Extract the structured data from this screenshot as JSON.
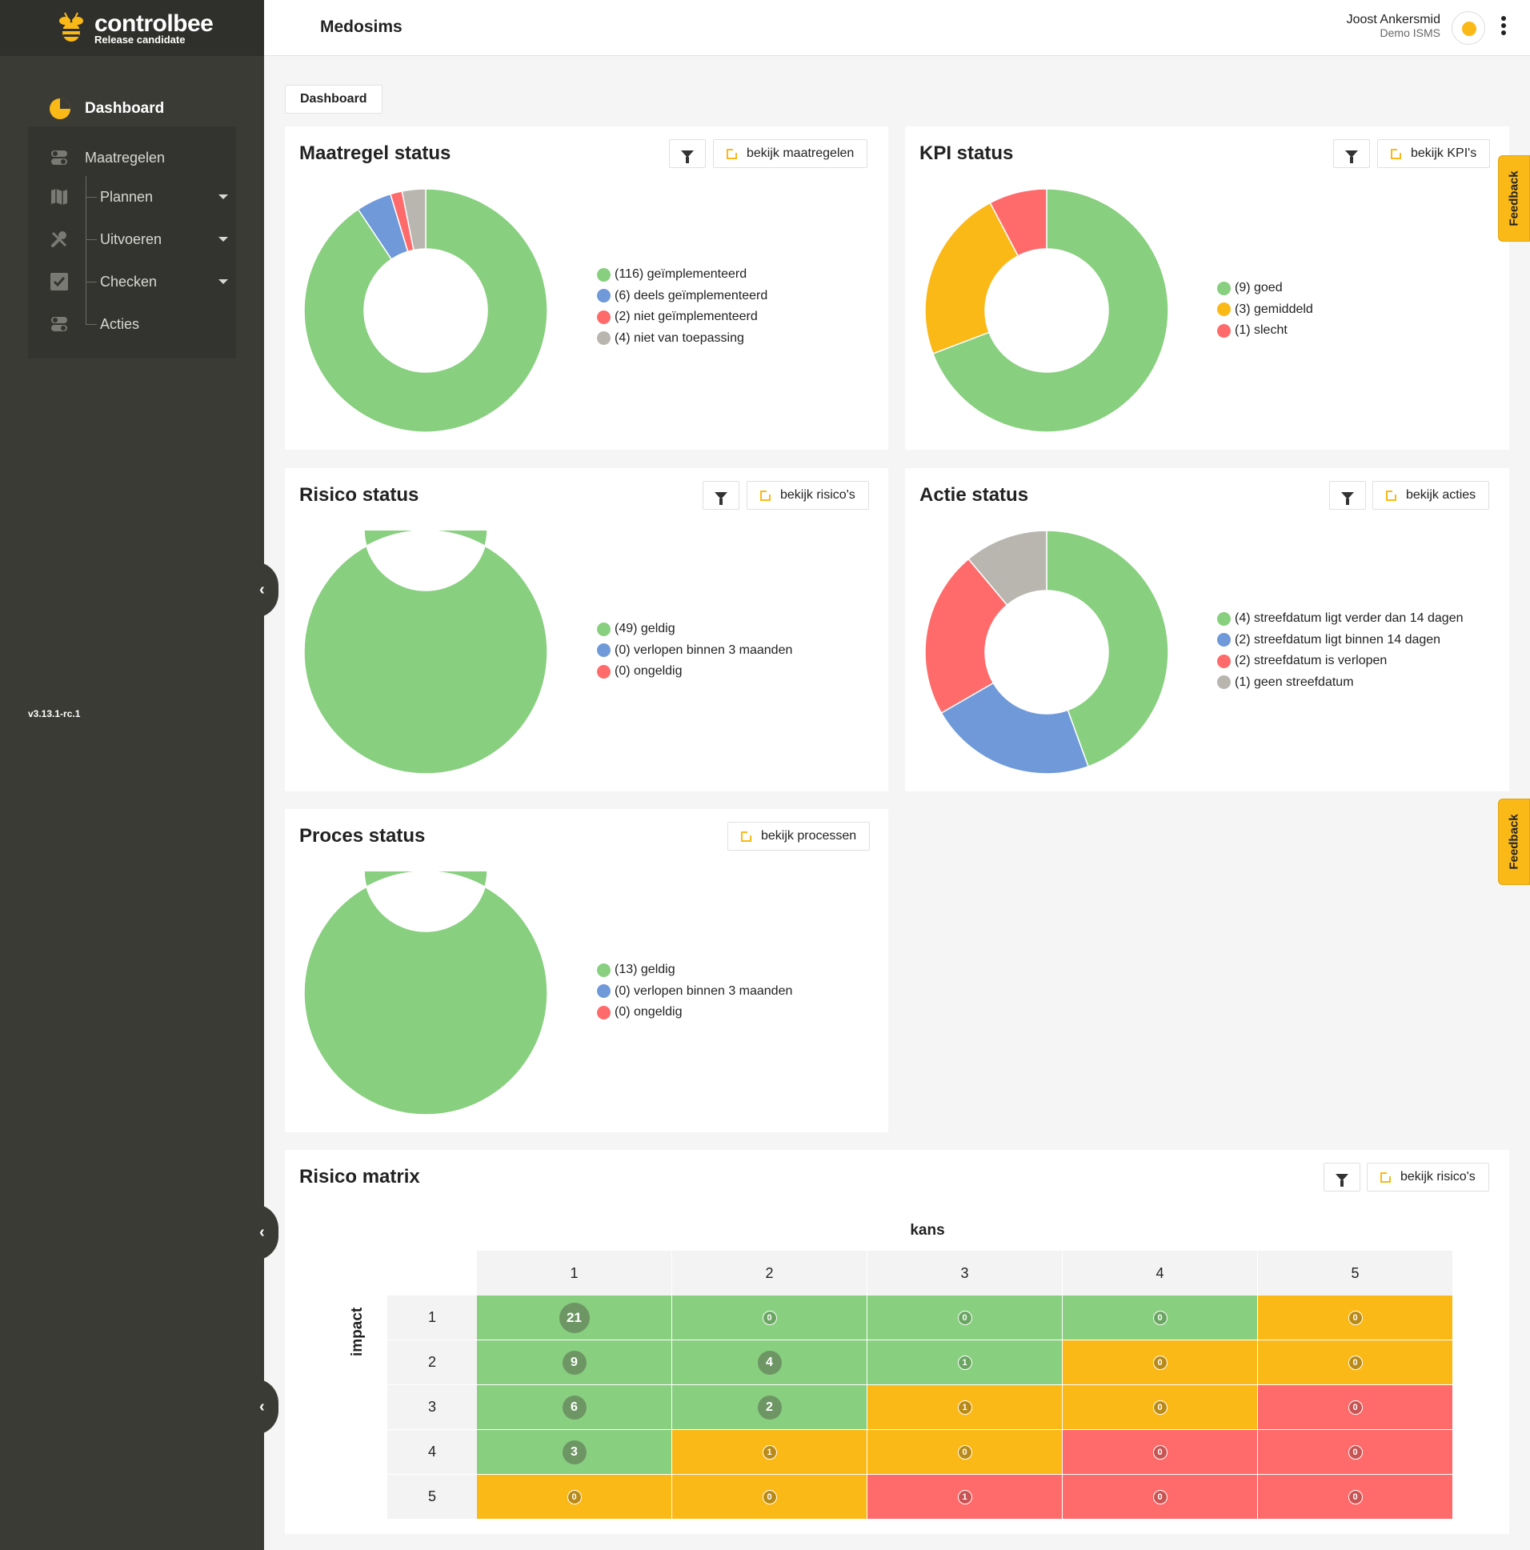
{
  "colors": {
    "green": "#88cf7f",
    "blue": "#6f99d8",
    "red": "#ff6b6b",
    "gray": "#b9b6b0",
    "orange": "#fbb917",
    "sidebar": "#3b3b36",
    "accent": "#fbb917"
  },
  "brand": {
    "name": "controlbee",
    "subtitle": "Release candidate",
    "icon": "bee-logo-icon"
  },
  "sidebar": {
    "dashboard": "Dashboard",
    "items": [
      {
        "label": "Maatregelen",
        "icon": "toggles-icon",
        "caret": false
      },
      {
        "label": "Plannen",
        "icon": "map-icon",
        "caret": true
      },
      {
        "label": "Uitvoeren",
        "icon": "tools-icon",
        "caret": true
      },
      {
        "label": "Checken",
        "icon": "check-icon",
        "caret": true
      },
      {
        "label": "Acties",
        "icon": "toggles-icon",
        "caret": false
      }
    ],
    "version": "v3.13.1-rc.1"
  },
  "header": {
    "org": "Medosims",
    "user_name": "Joost Ankersmid",
    "user_org": "Demo ISMS"
  },
  "breadcrumb": "Dashboard",
  "feedback_label": "Feedback",
  "cards": {
    "maatregel": {
      "title": "Maatregel status",
      "button": "bekijk maatregelen",
      "legend": [
        "(116) geïmplementeerd",
        "(6) deels geïmplementeerd",
        "(2) niet geïmplementeerd",
        "(4) niet van toepassing"
      ]
    },
    "kpi": {
      "title": "KPI status",
      "button": "bekijk KPI's",
      "legend": [
        "(9) goed",
        "(3) gemiddeld",
        "(1) slecht"
      ]
    },
    "risico": {
      "title": "Risico status",
      "button": "bekijk risico's",
      "legend": [
        "(49) geldig",
        "(0) verlopen binnen 3 maanden",
        "(0) ongeldig"
      ]
    },
    "actie": {
      "title": "Actie status",
      "button": "bekijk acties",
      "legend": [
        "(4) streefdatum ligt verder dan 14 dagen",
        "(2) streefdatum ligt binnen 14 dagen",
        "(2) streefdatum is verlopen",
        "(1) geen streefdatum"
      ]
    },
    "proces": {
      "title": "Proces status",
      "button": "bekijk processen",
      "legend": [
        "(13) geldig",
        "(0) verlopen binnen 3 maanden",
        "(0) ongeldig"
      ]
    },
    "matrix": {
      "title": "Risico matrix",
      "button": "bekijk risico's",
      "x_label": "kans",
      "y_label": "impact"
    }
  },
  "chart_data": [
    {
      "type": "pie",
      "id": "maatregel",
      "categories": [
        "geïmplementeerd",
        "deels geïmplementeerd",
        "niet geïmplementeerd",
        "niet van toepassing"
      ],
      "values": [
        116,
        6,
        2,
        4
      ],
      "colors": [
        "#88cf7f",
        "#6f99d8",
        "#ff6b6b",
        "#b9b6b0"
      ]
    },
    {
      "type": "pie",
      "id": "kpi",
      "categories": [
        "goed",
        "gemiddeld",
        "slecht"
      ],
      "values": [
        9,
        3,
        1
      ],
      "colors": [
        "#88cf7f",
        "#fbb917",
        "#ff6b6b"
      ]
    },
    {
      "type": "pie",
      "id": "risico",
      "categories": [
        "geldig",
        "verlopen binnen 3 maanden",
        "ongeldig"
      ],
      "values": [
        49,
        0,
        0
      ],
      "colors": [
        "#88cf7f",
        "#6f99d8",
        "#ff6b6b"
      ]
    },
    {
      "type": "pie",
      "id": "actie",
      "categories": [
        "streefdatum ligt verder dan 14 dagen",
        "streefdatum ligt binnen 14 dagen",
        "streefdatum is verlopen",
        "geen streefdatum"
      ],
      "values": [
        4,
        2,
        2,
        1
      ],
      "colors": [
        "#88cf7f",
        "#6f99d8",
        "#ff6b6b",
        "#b9b6b0"
      ]
    },
    {
      "type": "pie",
      "id": "proces",
      "categories": [
        "geldig",
        "verlopen binnen 3 maanden",
        "ongeldig"
      ],
      "values": [
        13,
        0,
        0
      ],
      "colors": [
        "#88cf7f",
        "#6f99d8",
        "#ff6b6b"
      ]
    },
    {
      "type": "heatmap",
      "id": "matrix",
      "x": [
        "1",
        "2",
        "3",
        "4",
        "5"
      ],
      "y": [
        "1",
        "2",
        "3",
        "4",
        "5"
      ],
      "values": [
        [
          21,
          0,
          0,
          0,
          0
        ],
        [
          9,
          4,
          1,
          0,
          0
        ],
        [
          6,
          2,
          1,
          0,
          0
        ],
        [
          3,
          1,
          0,
          0,
          0
        ],
        [
          0,
          0,
          1,
          0,
          0
        ]
      ],
      "levels": [
        [
          "green",
          "green",
          "green",
          "green",
          "orange"
        ],
        [
          "green",
          "green",
          "green",
          "orange",
          "orange"
        ],
        [
          "green",
          "green",
          "orange",
          "orange",
          "red"
        ],
        [
          "green",
          "orange",
          "orange",
          "red",
          "red"
        ],
        [
          "orange",
          "orange",
          "red",
          "red",
          "red"
        ]
      ]
    }
  ]
}
